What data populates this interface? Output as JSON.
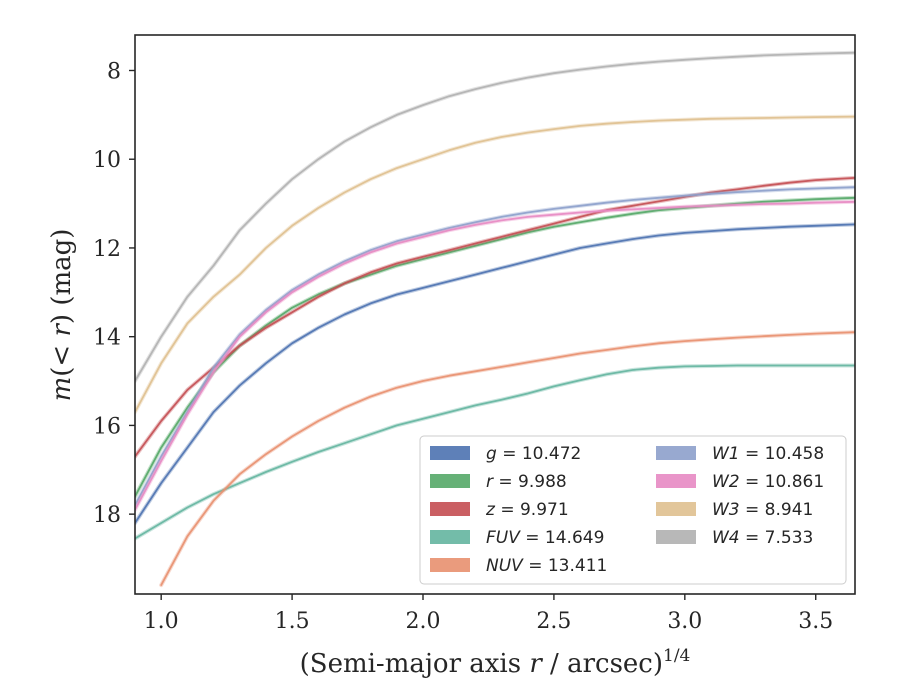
{
  "chart_data": {
    "type": "line",
    "xlabel": "(Semi-major axis r / arcsec)^1/4",
    "ylabel": "m(< r) (mag)",
    "xlim": [
      0.9,
      3.65
    ],
    "ylim": [
      19.8,
      7.2
    ],
    "y_inverted": true,
    "grid": false,
    "legend": "lower-right",
    "legend_columns": 2,
    "x_ticks": [
      1.0,
      1.5,
      2.0,
      2.5,
      3.0,
      3.5
    ],
    "x_tick_labels": [
      "1.0",
      "1.5",
      "2.0",
      "2.5",
      "3.0",
      "3.5"
    ],
    "y_ticks": [
      8,
      10,
      12,
      14,
      16,
      18
    ],
    "y_tick_labels": [
      "8",
      "10",
      "12",
      "14",
      "16",
      "18"
    ],
    "series": [
      {
        "name": "g = 10.472",
        "band": "g",
        "total_mag": "10.472",
        "color": "#4c72b0",
        "x": [
          0.9,
          1.0,
          1.1,
          1.2,
          1.3,
          1.4,
          1.5,
          1.6,
          1.7,
          1.8,
          1.9,
          2.0,
          2.1,
          2.2,
          2.3,
          2.4,
          2.5,
          2.6,
          2.7,
          2.8,
          2.9,
          3.0,
          3.1,
          3.2,
          3.3,
          3.4,
          3.5,
          3.65
        ],
        "y": [
          18.2,
          17.3,
          16.5,
          15.7,
          15.1,
          14.6,
          14.15,
          13.8,
          13.5,
          13.25,
          13.05,
          12.9,
          12.75,
          12.6,
          12.45,
          12.3,
          12.15,
          12.0,
          11.9,
          11.8,
          11.72,
          11.66,
          11.62,
          11.58,
          11.55,
          11.52,
          11.5,
          11.47
        ]
      },
      {
        "name": "r = 9.988",
        "band": "r",
        "total_mag": "9.988",
        "color": "#55a868",
        "x": [
          0.9,
          1.0,
          1.1,
          1.2,
          1.3,
          1.4,
          1.5,
          1.6,
          1.7,
          1.8,
          1.9,
          2.0,
          2.1,
          2.2,
          2.3,
          2.4,
          2.5,
          2.6,
          2.7,
          2.8,
          2.9,
          3.0,
          3.1,
          3.2,
          3.3,
          3.4,
          3.5,
          3.65
        ],
        "y": [
          17.6,
          16.5,
          15.6,
          14.8,
          14.2,
          13.75,
          13.35,
          13.05,
          12.8,
          12.6,
          12.4,
          12.25,
          12.1,
          11.95,
          11.8,
          11.65,
          11.52,
          11.42,
          11.32,
          11.23,
          11.15,
          11.1,
          11.05,
          11.0,
          10.96,
          10.93,
          10.9,
          10.87
        ]
      },
      {
        "name": "z = 9.971",
        "band": "z",
        "total_mag": "9.971",
        "color": "#c44e52",
        "x": [
          0.9,
          1.0,
          1.1,
          1.2,
          1.3,
          1.4,
          1.5,
          1.6,
          1.7,
          1.8,
          1.9,
          2.0,
          2.1,
          2.2,
          2.3,
          2.4,
          2.5,
          2.6,
          2.7,
          2.8,
          2.9,
          3.0,
          3.1,
          3.2,
          3.3,
          3.4,
          3.5,
          3.65
        ],
        "y": [
          16.7,
          15.9,
          15.2,
          14.7,
          14.2,
          13.8,
          13.45,
          13.1,
          12.8,
          12.55,
          12.35,
          12.2,
          12.05,
          11.9,
          11.75,
          11.6,
          11.45,
          11.3,
          11.15,
          11.05,
          10.95,
          10.85,
          10.75,
          10.68,
          10.6,
          10.53,
          10.47,
          10.42
        ]
      },
      {
        "name": "FUV = 14.649",
        "band": "FUV",
        "total_mag": "14.649",
        "color": "#64b5a0",
        "x": [
          0.9,
          1.0,
          1.1,
          1.2,
          1.3,
          1.4,
          1.5,
          1.6,
          1.7,
          1.8,
          1.9,
          2.0,
          2.1,
          2.2,
          2.3,
          2.4,
          2.5,
          2.6,
          2.7,
          2.8,
          2.9,
          3.0,
          3.1,
          3.2,
          3.3,
          3.4,
          3.5,
          3.65
        ],
        "y": [
          18.55,
          18.2,
          17.85,
          17.55,
          17.3,
          17.05,
          16.82,
          16.6,
          16.4,
          16.2,
          16.0,
          15.85,
          15.7,
          15.55,
          15.42,
          15.28,
          15.12,
          14.98,
          14.85,
          14.75,
          14.7,
          14.67,
          14.66,
          14.65,
          14.65,
          14.65,
          14.65,
          14.65
        ]
      },
      {
        "name": "NUV = 13.411",
        "band": "NUV",
        "total_mag": "13.411",
        "color": "#e8906f",
        "x": [
          1.0,
          1.1,
          1.2,
          1.3,
          1.4,
          1.5,
          1.6,
          1.7,
          1.8,
          1.9,
          2.0,
          2.1,
          2.2,
          2.3,
          2.4,
          2.5,
          2.6,
          2.7,
          2.8,
          2.9,
          3.0,
          3.1,
          3.2,
          3.3,
          3.4,
          3.5,
          3.65
        ],
        "y": [
          19.6,
          18.5,
          17.7,
          17.1,
          16.65,
          16.25,
          15.9,
          15.6,
          15.35,
          15.15,
          15.0,
          14.88,
          14.78,
          14.68,
          14.58,
          14.48,
          14.38,
          14.3,
          14.22,
          14.15,
          14.1,
          14.06,
          14.02,
          13.99,
          13.96,
          13.93,
          13.9
        ]
      },
      {
        "name": "W1 = 10.458",
        "band": "W1",
        "total_mag": "10.458",
        "color": "#8da0cb",
        "x": [
          0.9,
          1.0,
          1.1,
          1.2,
          1.3,
          1.4,
          1.5,
          1.6,
          1.7,
          1.8,
          1.9,
          2.0,
          2.1,
          2.2,
          2.3,
          2.4,
          2.5,
          2.6,
          2.7,
          2.8,
          2.9,
          3.0,
          3.1,
          3.2,
          3.3,
          3.4,
          3.5,
          3.65
        ],
        "y": [
          17.8,
          16.7,
          15.7,
          14.7,
          13.95,
          13.4,
          12.95,
          12.6,
          12.3,
          12.05,
          11.85,
          11.7,
          11.55,
          11.42,
          11.3,
          11.2,
          11.12,
          11.05,
          10.98,
          10.92,
          10.87,
          10.82,
          10.78,
          10.74,
          10.71,
          10.68,
          10.66,
          10.63
        ]
      },
      {
        "name": "W2 = 10.861",
        "band": "W2",
        "total_mag": "10.861",
        "color": "#e78ac3",
        "x": [
          0.9,
          1.0,
          1.1,
          1.2,
          1.3,
          1.4,
          1.5,
          1.6,
          1.7,
          1.8,
          1.9,
          2.0,
          2.1,
          2.2,
          2.3,
          2.4,
          2.5,
          2.6,
          2.7,
          2.8,
          2.9,
          3.0,
          3.1,
          3.2,
          3.3,
          3.4,
          3.5,
          3.65
        ],
        "y": [
          17.9,
          16.8,
          15.75,
          14.8,
          14.0,
          13.45,
          13.0,
          12.65,
          12.35,
          12.1,
          11.9,
          11.75,
          11.6,
          11.48,
          11.38,
          11.3,
          11.25,
          11.2,
          11.16,
          11.13,
          11.1,
          11.07,
          11.05,
          11.03,
          11.01,
          11.0,
          10.98,
          10.96
        ]
      },
      {
        "name": "W3 = 8.941",
        "band": "W3",
        "total_mag": "8.941",
        "color": "#dfc08f",
        "x": [
          0.9,
          1.0,
          1.1,
          1.2,
          1.3,
          1.4,
          1.5,
          1.6,
          1.7,
          1.8,
          1.9,
          2.0,
          2.1,
          2.2,
          2.3,
          2.4,
          2.5,
          2.6,
          2.7,
          2.8,
          2.9,
          3.0,
          3.1,
          3.2,
          3.3,
          3.4,
          3.5,
          3.65
        ],
        "y": [
          15.7,
          14.6,
          13.7,
          13.1,
          12.6,
          12.0,
          11.5,
          11.1,
          10.75,
          10.45,
          10.2,
          10.0,
          9.8,
          9.63,
          9.5,
          9.4,
          9.32,
          9.25,
          9.2,
          9.16,
          9.13,
          9.11,
          9.09,
          9.08,
          9.07,
          9.06,
          9.05,
          9.04
        ]
      },
      {
        "name": "W4 = 7.533",
        "band": "W4",
        "total_mag": "7.533",
        "color": "#b0b0b0",
        "x": [
          0.9,
          1.0,
          1.1,
          1.2,
          1.3,
          1.4,
          1.5,
          1.6,
          1.7,
          1.8,
          1.9,
          2.0,
          2.1,
          2.2,
          2.3,
          2.4,
          2.5,
          2.6,
          2.7,
          2.8,
          2.9,
          3.0,
          3.1,
          3.2,
          3.3,
          3.4,
          3.5,
          3.65
        ],
        "y": [
          15.0,
          14.0,
          13.1,
          12.4,
          11.6,
          11.0,
          10.45,
          10.0,
          9.6,
          9.28,
          9.0,
          8.78,
          8.58,
          8.42,
          8.28,
          8.16,
          8.06,
          7.98,
          7.91,
          7.85,
          7.8,
          7.76,
          7.72,
          7.69,
          7.66,
          7.64,
          7.62,
          7.6
        ]
      }
    ]
  }
}
